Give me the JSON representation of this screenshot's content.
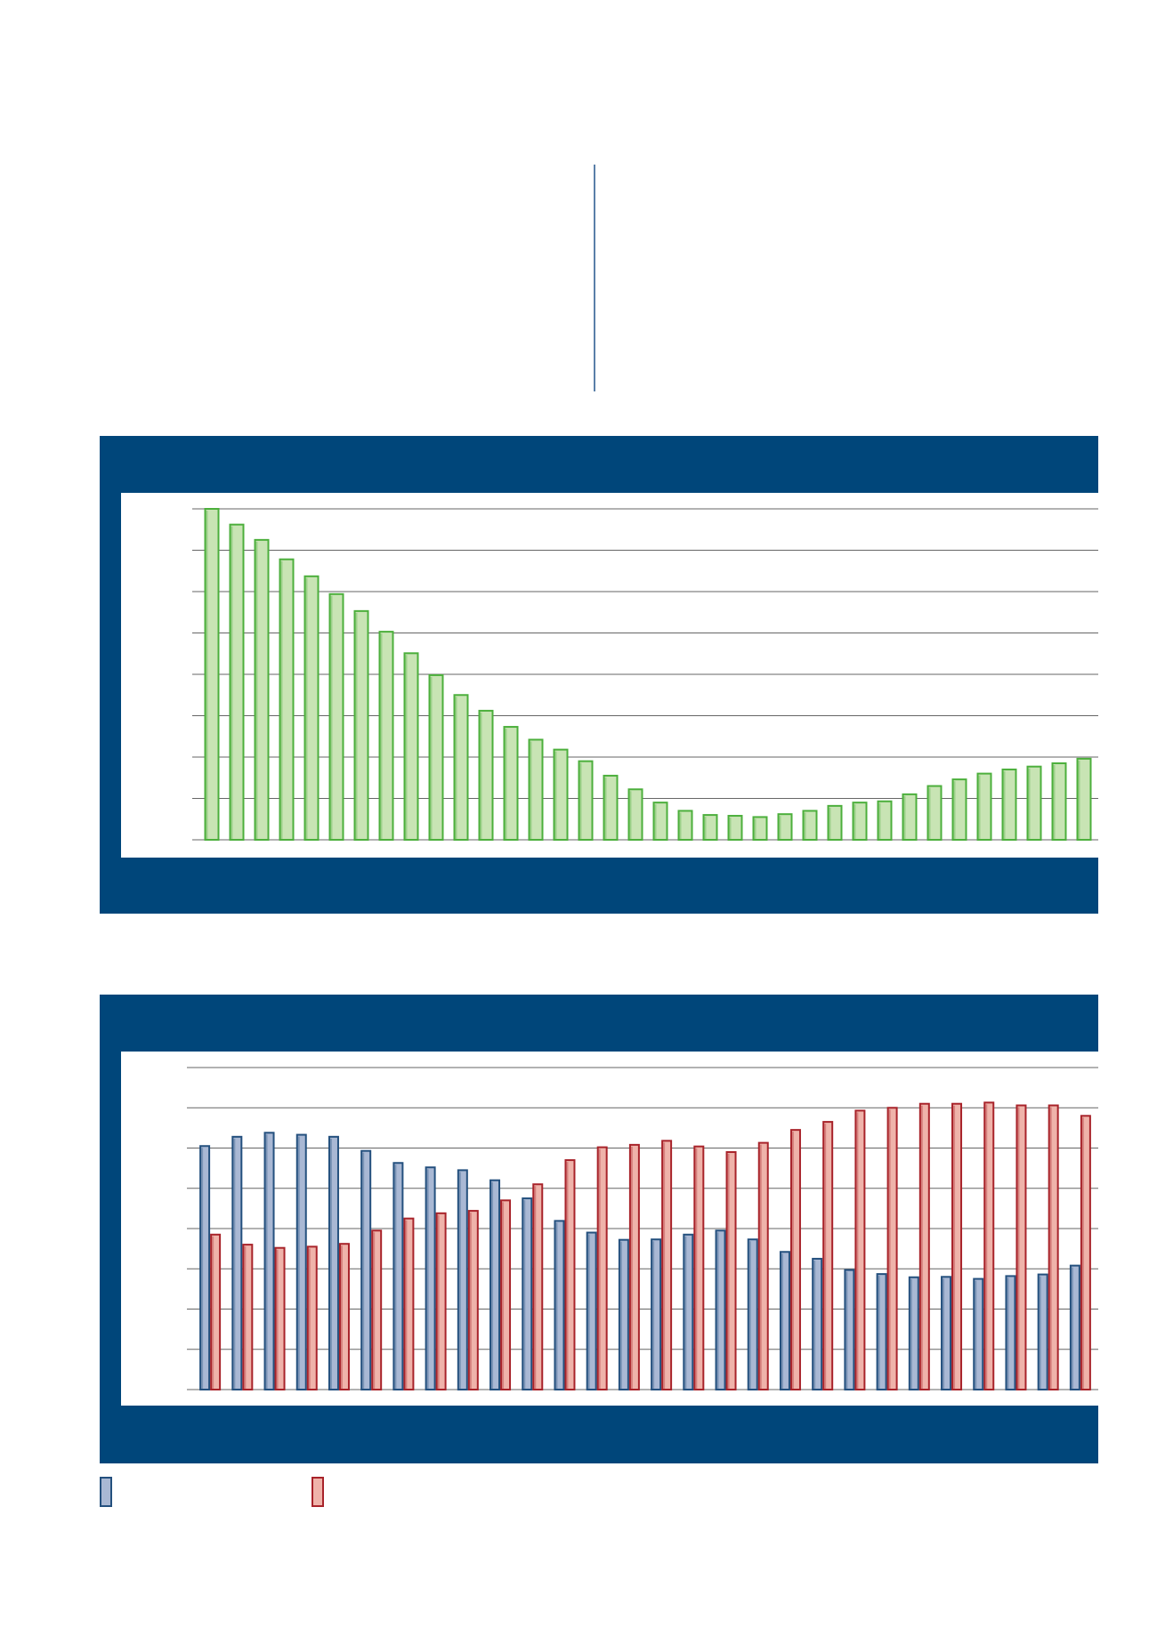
{
  "colors": {
    "panel_bg": "#00467a",
    "green_fill": "#c8e4b4",
    "green_stroke": "#4caf3c",
    "blue_fill": "#a9b8d4",
    "blue_stroke": "#24507e",
    "red_fill": "#efb3aa",
    "red_stroke": "#a8232a",
    "grid": "#666666"
  },
  "legend": {
    "series_a": {
      "name": "",
      "icon": "blue-swatch-icon"
    },
    "series_b": {
      "name": "",
      "icon": "red-swatch-icon"
    }
  },
  "chart_data": [
    {
      "type": "bar",
      "title": "",
      "xlabel": "",
      "ylabel": "",
      "ylim": [
        0,
        8
      ],
      "grid": true,
      "series": [
        {
          "values": [
            8.0,
            7.62,
            7.25,
            6.78,
            6.37,
            5.94,
            5.53,
            5.03,
            4.51,
            3.98,
            3.5,
            3.12,
            2.73,
            2.42,
            2.18,
            1.9,
            1.55,
            1.22,
            0.9,
            0.7,
            0.6,
            0.58,
            0.55,
            0.62,
            0.7,
            0.82,
            0.9,
            0.93,
            1.1,
            1.3,
            1.46,
            1.6,
            1.7,
            1.77,
            1.85,
            1.96
          ]
        }
      ]
    },
    {
      "type": "bar",
      "title": "",
      "xlabel": "",
      "ylabel": "",
      "ylim": [
        0,
        8
      ],
      "grid": true,
      "series": [
        {
          "values": [
            6.05,
            6.28,
            6.38,
            6.33,
            6.28,
            5.93,
            5.63,
            5.52,
            5.45,
            5.2,
            4.75,
            4.19,
            3.9,
            3.72,
            3.73,
            3.85,
            3.95,
            3.73,
            3.42,
            3.25,
            2.97,
            2.87,
            2.79,
            2.8,
            2.75,
            2.82,
            2.86,
            3.08
          ]
        },
        {
          "values": [
            3.85,
            3.6,
            3.52,
            3.55,
            3.62,
            3.95,
            4.25,
            4.38,
            4.44,
            4.7,
            5.1,
            5.7,
            6.02,
            6.08,
            6.18,
            6.04,
            5.9,
            6.13,
            6.45,
            6.65,
            6.93,
            7.0,
            7.1,
            7.1,
            7.13,
            7.06,
            7.06,
            6.8
          ]
        }
      ]
    }
  ]
}
